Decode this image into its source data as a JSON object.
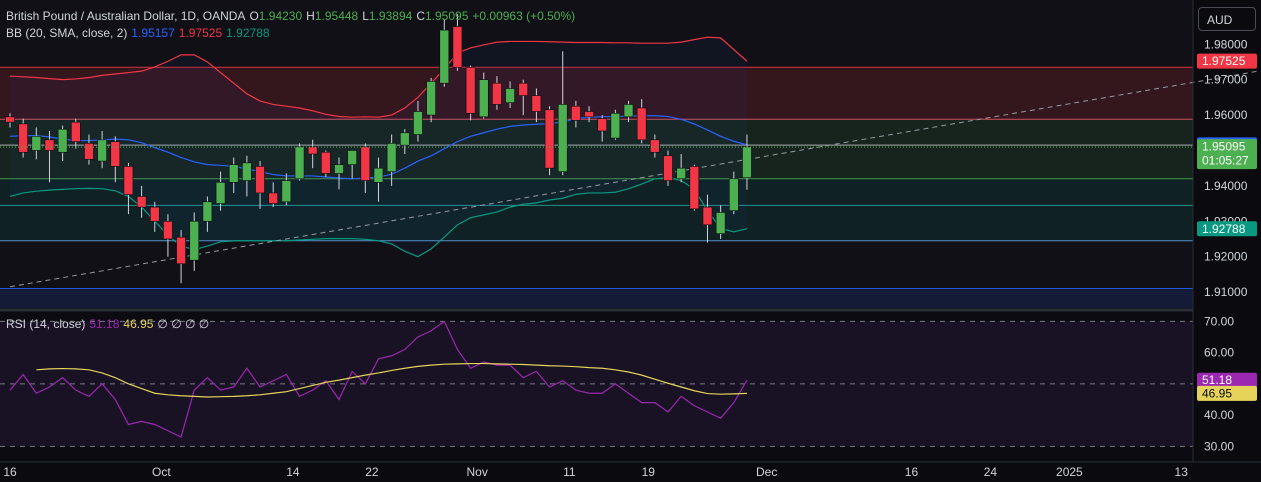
{
  "header": {
    "symbol": "British Pound / Australian Dollar, 1D, OANDA",
    "o_label": "O",
    "o_value": "1.94230",
    "h_label": "H",
    "h_value": "1.95448",
    "l_label": "L",
    "l_value": "1.93894",
    "c_label": "C",
    "c_value": "1.95095",
    "change": "+0.00963 (+0.50%)"
  },
  "bb_legend": {
    "name": "BB (20, SMA, close, 2)",
    "basis": "1.95157",
    "upper": "1.97525",
    "lower": "1.92788"
  },
  "rsi_legend": {
    "name": "RSI (14, close)",
    "rsi": "51.18",
    "ma": "46.95",
    "extras": "∅ ∅ ∅ ∅"
  },
  "currency_button": "AUD",
  "colors": {
    "background": "#0b0b0f",
    "up": "#4caf50",
    "down": "#f23645",
    "bb_basis": "#2962ff",
    "bb_upper": "#f23645",
    "bb_lower": "#089981",
    "rsi": "#9c27b0",
    "rsi_ma": "#e5d35a",
    "grid": "#2a2e39",
    "axis_text": "#d1d4dc"
  },
  "chart_data": [
    {
      "type": "candlestick",
      "title": "British Pound / Australian Dollar, 1D, OANDA",
      "y_ticks": [
        "1.98000",
        "1.97000",
        "1.96000",
        "1.95000",
        "1.94000",
        "1.93000",
        "1.92000",
        "1.91000"
      ],
      "ylim": [
        1.9055,
        1.9925
      ],
      "x_ticks": [
        {
          "label": "16",
          "bar": 0
        },
        {
          "label": "Oct",
          "bar": 11.5
        },
        {
          "label": "14",
          "bar": 21.5
        },
        {
          "label": "22",
          "bar": 27.5
        },
        {
          "label": "Nov",
          "bar": 35.5
        },
        {
          "label": "11",
          "bar": 42.5
        },
        {
          "label": "19",
          "bar": 48.5
        },
        {
          "label": "Dec",
          "bar": 57.5
        },
        {
          "label": "16",
          "bar": 68.5
        },
        {
          "label": "24",
          "bar": 74.5
        },
        {
          "label": "2025",
          "bar": 80.5
        },
        {
          "label": "13",
          "bar": 89
        }
      ],
      "candles": [
        {
          "o": 1.9595,
          "h": 1.9605,
          "l": 1.9565,
          "c": 1.958
        },
        {
          "o": 1.9575,
          "h": 1.959,
          "l": 1.948,
          "c": 1.9495
        },
        {
          "o": 1.95,
          "h": 1.9565,
          "l": 1.9475,
          "c": 1.954
        },
        {
          "o": 1.953,
          "h": 1.9555,
          "l": 1.941,
          "c": 1.95
        },
        {
          "o": 1.9495,
          "h": 1.957,
          "l": 1.947,
          "c": 1.956
        },
        {
          "o": 1.958,
          "h": 1.959,
          "l": 1.9505,
          "c": 1.9525
        },
        {
          "o": 1.952,
          "h": 1.9545,
          "l": 1.946,
          "c": 1.9475
        },
        {
          "o": 1.947,
          "h": 1.9555,
          "l": 1.945,
          "c": 1.953
        },
        {
          "o": 1.9525,
          "h": 1.954,
          "l": 1.941,
          "c": 1.9455
        },
        {
          "o": 1.9455,
          "h": 1.9465,
          "l": 1.932,
          "c": 1.9375
        },
        {
          "o": 1.937,
          "h": 1.94,
          "l": 1.931,
          "c": 1.934
        },
        {
          "o": 1.934,
          "h": 1.9355,
          "l": 1.927,
          "c": 1.93
        },
        {
          "o": 1.93,
          "h": 1.932,
          "l": 1.92,
          "c": 1.925
        },
        {
          "o": 1.9255,
          "h": 1.9275,
          "l": 1.9125,
          "c": 1.918
        },
        {
          "o": 1.919,
          "h": 1.9325,
          "l": 1.916,
          "c": 1.93
        },
        {
          "o": 1.93,
          "h": 1.937,
          "l": 1.927,
          "c": 1.9355
        },
        {
          "o": 1.935,
          "h": 1.944,
          "l": 1.933,
          "c": 1.941
        },
        {
          "o": 1.941,
          "h": 1.948,
          "l": 1.938,
          "c": 1.946
        },
        {
          "o": 1.9415,
          "h": 1.9485,
          "l": 1.937,
          "c": 1.9465
        },
        {
          "o": 1.9455,
          "h": 1.947,
          "l": 1.9335,
          "c": 1.938
        },
        {
          "o": 1.938,
          "h": 1.941,
          "l": 1.934,
          "c": 1.935
        },
        {
          "o": 1.9355,
          "h": 1.9435,
          "l": 1.9345,
          "c": 1.9415
        },
        {
          "o": 1.942,
          "h": 1.952,
          "l": 1.9415,
          "c": 1.951
        },
        {
          "o": 1.951,
          "h": 1.953,
          "l": 1.945,
          "c": 1.949
        },
        {
          "o": 1.9495,
          "h": 1.95,
          "l": 1.9425,
          "c": 1.9435
        },
        {
          "o": 1.9435,
          "h": 1.948,
          "l": 1.939,
          "c": 1.946
        },
        {
          "o": 1.946,
          "h": 1.95,
          "l": 1.942,
          "c": 1.95
        },
        {
          "o": 1.951,
          "h": 1.952,
          "l": 1.938,
          "c": 1.9415
        },
        {
          "o": 1.941,
          "h": 1.948,
          "l": 1.9355,
          "c": 1.945
        },
        {
          "o": 1.944,
          "h": 1.9545,
          "l": 1.94,
          "c": 1.952
        },
        {
          "o": 1.9515,
          "h": 1.956,
          "l": 1.949,
          "c": 1.955
        },
        {
          "o": 1.9545,
          "h": 1.964,
          "l": 1.9525,
          "c": 1.961
        },
        {
          "o": 1.96,
          "h": 1.9705,
          "l": 1.958,
          "c": 1.9695
        },
        {
          "o": 1.969,
          "h": 1.987,
          "l": 1.968,
          "c": 1.984
        },
        {
          "o": 1.985,
          "h": 1.9885,
          "l": 1.9725,
          "c": 1.9735
        },
        {
          "o": 1.9735,
          "h": 1.974,
          "l": 1.9585,
          "c": 1.9605
        },
        {
          "o": 1.9595,
          "h": 1.972,
          "l": 1.959,
          "c": 1.97
        },
        {
          "o": 1.969,
          "h": 1.971,
          "l": 1.9615,
          "c": 1.963
        },
        {
          "o": 1.9635,
          "h": 1.9695,
          "l": 1.962,
          "c": 1.9675
        },
        {
          "o": 1.969,
          "h": 1.97,
          "l": 1.96,
          "c": 1.9655
        },
        {
          "o": 1.9655,
          "h": 1.9675,
          "l": 1.958,
          "c": 1.961
        },
        {
          "o": 1.9615,
          "h": 1.9625,
          "l": 1.943,
          "c": 1.945
        },
        {
          "o": 1.944,
          "h": 1.978,
          "l": 1.943,
          "c": 1.963
        },
        {
          "o": 1.9625,
          "h": 1.964,
          "l": 1.9565,
          "c": 1.9585
        },
        {
          "o": 1.961,
          "h": 1.9625,
          "l": 1.958,
          "c": 1.9595
        },
        {
          "o": 1.959,
          "h": 1.96,
          "l": 1.9525,
          "c": 1.9555
        },
        {
          "o": 1.9535,
          "h": 1.9615,
          "l": 1.953,
          "c": 1.9605
        },
        {
          "o": 1.9595,
          "h": 1.964,
          "l": 1.958,
          "c": 1.963
        },
        {
          "o": 1.962,
          "h": 1.9645,
          "l": 1.952,
          "c": 1.953
        },
        {
          "o": 1.953,
          "h": 1.9545,
          "l": 1.948,
          "c": 1.9495
        },
        {
          "o": 1.9485,
          "h": 1.95,
          "l": 1.94,
          "c": 1.9415
        },
        {
          "o": 1.942,
          "h": 1.949,
          "l": 1.941,
          "c": 1.945
        },
        {
          "o": 1.9455,
          "h": 1.946,
          "l": 1.933,
          "c": 1.9335
        },
        {
          "o": 1.934,
          "h": 1.9375,
          "l": 1.924,
          "c": 1.929
        },
        {
          "o": 1.9265,
          "h": 1.9345,
          "l": 1.925,
          "c": 1.9325
        },
        {
          "o": 1.933,
          "h": 1.944,
          "l": 1.932,
          "c": 1.942
        },
        {
          "o": 1.9423,
          "h": 1.9545,
          "l": 1.9389,
          "c": 1.951
        }
      ],
      "bb_upper": [
        1.971,
        1.9708,
        1.9706,
        1.9703,
        1.97,
        1.9702,
        1.9706,
        1.9712,
        1.9716,
        1.972,
        1.9724,
        1.9736,
        1.9752,
        1.977,
        1.977,
        1.975,
        1.972,
        1.969,
        1.966,
        1.964,
        1.963,
        1.9625,
        1.962,
        1.9612,
        1.9602,
        1.9596,
        1.9594,
        1.9595,
        1.9594,
        1.96,
        1.962,
        1.965,
        1.969,
        1.973,
        1.9775,
        1.979,
        1.9798,
        1.9806,
        1.9808,
        1.9808,
        1.9808,
        1.9807,
        1.9806,
        1.9805,
        1.9805,
        1.9805,
        1.9804,
        1.9804,
        1.9803,
        1.9803,
        1.9803,
        1.9806,
        1.9813,
        1.982,
        1.9818,
        1.9785,
        1.9752
      ],
      "bb_basis": [
        1.954,
        1.9542,
        1.9542,
        1.9538,
        1.9532,
        1.9528,
        1.9528,
        1.953,
        1.9532,
        1.953,
        1.9522,
        1.9508,
        1.9495,
        1.948,
        1.9468,
        1.946,
        1.9458,
        1.9455,
        1.9448,
        1.944,
        1.9432,
        1.9428,
        1.9428,
        1.9428,
        1.9425,
        1.9422,
        1.942,
        1.9422,
        1.9425,
        1.9433,
        1.945,
        1.947,
        1.9485,
        1.9505,
        1.9525,
        1.954,
        1.955,
        1.956,
        1.9568,
        1.9572,
        1.9574,
        1.9576,
        1.958,
        1.959,
        1.9594,
        1.9595,
        1.9596,
        1.9597,
        1.9598,
        1.9598,
        1.9596,
        1.9588,
        1.9575,
        1.9558,
        1.954,
        1.9526,
        1.9516
      ],
      "bb_lower": [
        1.937,
        1.938,
        1.9385,
        1.9388,
        1.939,
        1.9392,
        1.9393,
        1.9392,
        1.9386,
        1.937,
        1.934,
        1.93,
        1.926,
        1.923,
        1.922,
        1.923,
        1.9242,
        1.9245,
        1.9245,
        1.9245,
        1.9245,
        1.9245,
        1.9247,
        1.9249,
        1.9251,
        1.9251,
        1.9251,
        1.9249,
        1.9245,
        1.9236,
        1.9215,
        1.92,
        1.9222,
        1.9255,
        1.929,
        1.931,
        1.9318,
        1.9326,
        1.934,
        1.9348,
        1.9352,
        1.936,
        1.9365,
        1.9376,
        1.938,
        1.938,
        1.9382,
        1.9392,
        1.9405,
        1.942,
        1.9423,
        1.9415,
        1.939,
        1.933,
        1.928,
        1.927,
        1.9279
      ],
      "projection_line": {
        "x0": 0,
        "y0": 1.9115,
        "x1": 95,
        "y1": 1.9725
      },
      "horizontal_levels": [
        1.9735,
        1.9588,
        1.9515,
        1.942,
        1.9345,
        1.9245,
        1.911
      ],
      "last_price": 1.95095,
      "price_labels": [
        {
          "text": "1.97525",
          "value": 1.97525,
          "color": "#f23645"
        },
        {
          "text": "1.95157",
          "value": 1.95157,
          "color": "#2962ff"
        },
        {
          "text": "1.95095",
          "sub": "01:05:27",
          "value": 1.95095,
          "color": "#4caf50"
        },
        {
          "text": "1.92788",
          "value": 1.92788,
          "color": "#089981"
        }
      ]
    },
    {
      "type": "line",
      "title": "RSI (14, close)",
      "y_ticks": [
        "70.00",
        "60.00",
        "40.00",
        "30.00"
      ],
      "ylim": [
        25.0,
        73.0
      ],
      "band": [
        30,
        70
      ],
      "mid_line": 50,
      "rsi": [
        48,
        53,
        47,
        49,
        52,
        48,
        46,
        50,
        45,
        37,
        38,
        37,
        35,
        33,
        48,
        52,
        48,
        49,
        55,
        49,
        51,
        53,
        46,
        48,
        51,
        45,
        54,
        50,
        58,
        59,
        61,
        65,
        67,
        70,
        61,
        55,
        57,
        56,
        56,
        52,
        54,
        49,
        51,
        48,
        47,
        47,
        50,
        47,
        44,
        44,
        41,
        46,
        43,
        41,
        39,
        44,
        51.18
      ],
      "rsi_ma": [
        54.5,
        54.8,
        54.9,
        54.8,
        54.5,
        53.5,
        52,
        50,
        48.5,
        47,
        46.5,
        46.2,
        46,
        45.8,
        45.9,
        46,
        46.2,
        46.5,
        47,
        47.5,
        48.5,
        49.5,
        50.5,
        51.2,
        52,
        52.8,
        53.5,
        54.3,
        55,
        55.6,
        56,
        56.3,
        56.4,
        56.5,
        56.5,
        56.4,
        56.3,
        56.2,
        56,
        55.8,
        55.7,
        55.5,
        55.2,
        55,
        54.5,
        53.8,
        52.8,
        51.5,
        50.2,
        49,
        47.8,
        46.9,
        46.7,
        46.8,
        46.95
      ],
      "rsi_ma_start": 2,
      "price_labels": [
        {
          "text": "51.18",
          "value": 51.18,
          "color": "#9c27b0"
        },
        {
          "text": "46.95",
          "value": 46.95,
          "color": "#e5d35a"
        }
      ]
    }
  ]
}
